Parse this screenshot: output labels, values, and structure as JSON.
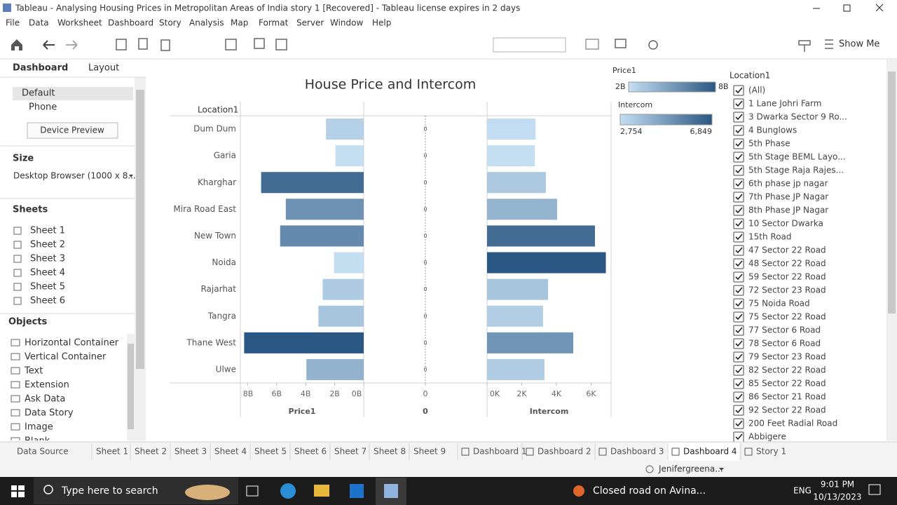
{
  "window": {
    "title": "Tableau - Analysing Housing Prices in Metropolitan Areas of India story 1 [Recovered] - Tableau license expires in 2 days"
  },
  "menu": [
    "File",
    "Data",
    "Worksheet",
    "Dashboard",
    "Story",
    "Analysis",
    "Map",
    "Format",
    "Server",
    "Window",
    "Help"
  ],
  "toolbar": {
    "show_me": "Show Me"
  },
  "left_panel": {
    "tabs": [
      "Dashboard",
      "Layout"
    ],
    "devices": [
      "Default",
      "Phone"
    ],
    "device_preview": "Device Preview",
    "size_title": "Size",
    "size_value": "Desktop Browser (1000 x 8...",
    "sheets_title": "Sheets",
    "sheets": [
      "Sheet 1",
      "Sheet 2",
      "Sheet 3",
      "Sheet 4",
      "Sheet 5",
      "Sheet 6"
    ],
    "objects_title": "Objects",
    "objects": [
      "Horizontal Container",
      "Vertical Container",
      "Text",
      "Extension",
      "Ask Data",
      "Data Story",
      "Image",
      "Blank"
    ]
  },
  "chart_data": {
    "type": "bar",
    "title": "House Price and Intercom",
    "row_header": "Location1",
    "categories": [
      "Dum Dum",
      "Garia",
      "Kharghar",
      "Mira Road East",
      "New Town",
      "Noida",
      "Rajarhat",
      "Tangra",
      "Thane West",
      "Ulwe"
    ],
    "panels": [
      {
        "name": "Price1",
        "reversed": true,
        "xlim": [
          0,
          8500000000
        ],
        "xticks": [
          {
            "value": 0,
            "label": "0B"
          },
          {
            "value": 2000000000,
            "label": "2B"
          },
          {
            "value": 4000000000,
            "label": "4B"
          },
          {
            "value": 6000000000,
            "label": "6B"
          },
          {
            "value": 8000000000,
            "label": "8B"
          }
        ],
        "values": [
          2600000000,
          1950000000,
          7070000000,
          5370000000,
          5760000000,
          2050000000,
          2830000000,
          3120000000,
          8240000000,
          3950000000
        ],
        "legend": {
          "title": "Price1",
          "min": {
            "value": 2000000000,
            "label": "2B"
          },
          "max": {
            "value": 8000000000,
            "label": "8B"
          },
          "colors": [
            "#c4def2",
            "#2a5783"
          ]
        }
      },
      {
        "name": "0",
        "xlim": [
          -1,
          1
        ],
        "xticks": [
          0
        ],
        "values": [
          0,
          0,
          0,
          0,
          0,
          0,
          0,
          0,
          0,
          0
        ]
      },
      {
        "name": "Intercom",
        "xlim": [
          0,
          7150
        ],
        "xticks": [
          {
            "value": 0,
            "label": "0K"
          },
          {
            "value": 2000,
            "label": "2K"
          },
          {
            "value": 4000,
            "label": "4K"
          },
          {
            "value": 6000,
            "label": "6K"
          }
        ],
        "values": [
          2800,
          2754,
          3390,
          4040,
          6220,
          6849,
          3520,
          3230,
          4970,
          3310
        ],
        "legend": {
          "title": "Intercom",
          "min": {
            "value": 2754,
            "label": "2,754"
          },
          "max": {
            "value": 6849,
            "label": "6,849"
          },
          "colors": [
            "#c4def2",
            "#2a5783"
          ]
        }
      }
    ]
  },
  "filter": {
    "title": "Location1",
    "items": [
      "(All)",
      "1 Lane Johri Farm",
      "3 Dwarka Sector 9 Ro...",
      "4 Bunglows",
      "5th Phase",
      "5th Stage BEML Layo...",
      "5th Stage Raja Rajes...",
      "6th phase jp nagar",
      "7th Phase JP Nagar",
      "8th Phase JP Nagar",
      "10 Sector Dwarka",
      "15th Road",
      "47 Sector 22 Road",
      "48 Sector 22 Road",
      "59 Sector 22 Road",
      "72 Sector 23 Road",
      "75 Noida Road",
      "75 Sector 22 Road",
      "77 Sector 6 Road",
      "78 Sector 6 Road",
      "79 Sector 23 Road",
      "82 Sector 22 Road",
      "85 Sector 22 Road",
      "86 Sector 21 Road",
      "92 Sector 22 Road",
      "200 Feet Radial Road",
      "Abbigere"
    ]
  },
  "tabs": [
    "Data Source",
    "Sheet 1",
    "Sheet 2",
    "Sheet 3",
    "Sheet 4",
    "Sheet 5",
    "Sheet 6",
    "Sheet 7",
    "Sheet 8",
    "Sheet 9",
    "Dashboard 1",
    "Dashboard 2",
    "Dashboard 3",
    "Dashboard 4",
    "Story 1"
  ],
  "status": {
    "user": "Jenifergreena..."
  },
  "taskbar": {
    "search": "Type here to search",
    "notification": "Closed road on Avina...",
    "language": "ENG",
    "time": "9:01 PM",
    "date": "10/13/2023"
  }
}
